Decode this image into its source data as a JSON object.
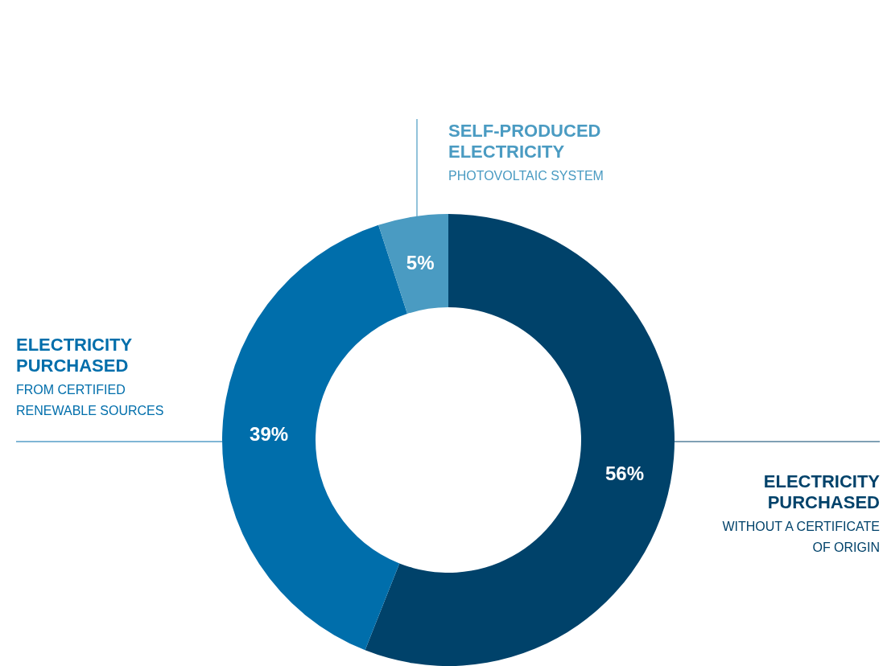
{
  "chart_data": {
    "type": "donut",
    "categories": [
      "ELECTRICITY PURCHASED",
      "ELECTRICITY PURCHASED",
      "SELF-PRODUCED ELECTRICITY"
    ],
    "values": [
      56,
      39,
      5
    ],
    "colors": [
      "#00426a",
      "#006eab",
      "#4a9bc2"
    ],
    "value_labels": [
      "56%",
      "39%",
      "5%"
    ],
    "annotations": [
      "WITHOUT A CERTIFICATE OF ORIGIN",
      "FROM CERTIFIED RENEWABLE SOURCES",
      "PHOTOVOLTAIC SYSTEM"
    ]
  }
}
